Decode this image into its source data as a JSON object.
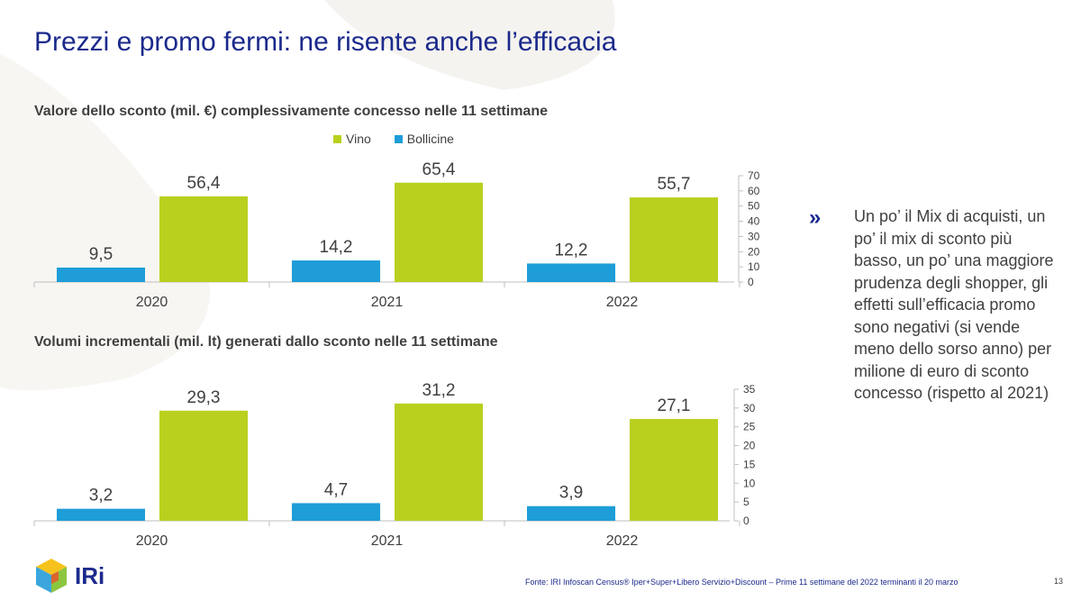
{
  "title": "Prezzi e promo fermi: ne risente anche l’efficacia",
  "legend": {
    "vino": "Vino",
    "bollicine": "Bollicine"
  },
  "colors": {
    "vino": "#b9d01f",
    "bollicine": "#1e9dd8",
    "title": "#1b2a8c",
    "text": "#404040"
  },
  "chart_data": [
    {
      "type": "bar",
      "title": "Valore dello sconto (mil. €) complessivamente concesso nelle 11 settimane",
      "categories": [
        "2020",
        "2021",
        "2022"
      ],
      "series": [
        {
          "name": "Bollicine",
          "values": [
            9.5,
            14.2,
            12.2
          ],
          "labels": [
            "9,5",
            "14,2",
            "12,2"
          ]
        },
        {
          "name": "Vino",
          "values": [
            56.4,
            65.4,
            55.7
          ],
          "labels": [
            "56,4",
            "65,4",
            "55,7"
          ]
        }
      ],
      "ylim": [
        0,
        70
      ],
      "yticks": [
        "0",
        "10",
        "20",
        "30",
        "40",
        "50",
        "60",
        "70"
      ],
      "axis": "right",
      "legend": "top"
    },
    {
      "type": "bar",
      "title": "Volumi incrementali (mil. lt) generati dallo sconto nelle 11 settimane",
      "categories": [
        "2020",
        "2021",
        "2022"
      ],
      "series": [
        {
          "name": "Bollicine",
          "values": [
            3.2,
            4.7,
            3.9
          ],
          "labels": [
            "3,2",
            "4,7",
            "3,9"
          ]
        },
        {
          "name": "Vino",
          "values": [
            29.3,
            31.2,
            27.1
          ],
          "labels": [
            "29,3",
            "31,2",
            "27,1"
          ]
        }
      ],
      "ylim": [
        0,
        35
      ],
      "yticks": [
        "0",
        "5",
        "10",
        "15",
        "20",
        "25",
        "30",
        "35"
      ],
      "axis": "right"
    }
  ],
  "side": {
    "chevron": "»",
    "text": "Un po’ il Mix di acquisti, un po’ il mix di sconto più basso, un po’ una maggiore prudenza degli shopper,  gli effetti sull’efficacia promo sono negativi (si vende meno dello sorso anno) per milione di euro di sconto concesso (rispetto al 2021)"
  },
  "logo": {
    "text": "IRi"
  },
  "footnote": "Fonte: IRI  Infoscan Census®  Iper+Super+Libero Servizio+Discount – Prime 11 settimane del 2022 terminanti il 20 marzo",
  "page_number": "13"
}
